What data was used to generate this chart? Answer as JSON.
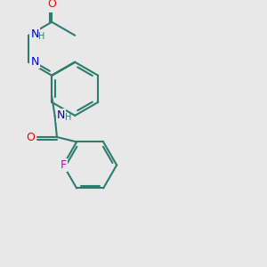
{
  "bg_color": "#e8e8e8",
  "bond_color": "#2d7d6e",
  "atom_colors": {
    "O": "#ff0000",
    "N": "#0000cc",
    "F": "#cc00cc",
    "H": "#2d7d6e"
  },
  "line_width": 1.5,
  "font_size": 9,
  "font_size_h": 7
}
